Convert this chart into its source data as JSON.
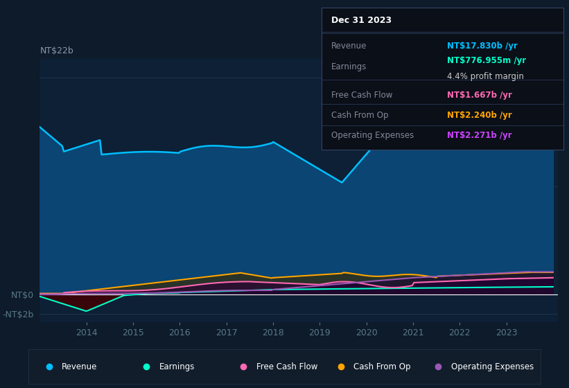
{
  "bg_color": "#0d1b2a",
  "plot_bg_color": "#0d2035",
  "grid_color": "#1e3a50",
  "revenue_color": "#00bfff",
  "earnings_color": "#00ffcc",
  "fcf_color": "#ff69b4",
  "cashop_color": "#ffa500",
  "opex_color": "#9b59b6",
  "revenue_fill": "#0a4a7a",
  "legend_labels": [
    "Revenue",
    "Earnings",
    "Free Cash Flow",
    "Cash From Op",
    "Operating Expenses"
  ],
  "legend_colors": [
    "#00bfff",
    "#00ffcc",
    "#ff69b4",
    "#ffa500",
    "#9b59b6"
  ],
  "tooltip_date": "Dec 31 2023",
  "tooltip_rows": [
    {
      "label": "Revenue",
      "value": "NT$17.830b /yr",
      "value_color": "#00bfff",
      "sub_label": null,
      "sub_value": null
    },
    {
      "label": "Earnings",
      "value": "NT$776.955m /yr",
      "value_color": "#00ffcc",
      "sub_label": null,
      "sub_value": "4.4% profit margin"
    },
    {
      "label": "Free Cash Flow",
      "value": "NT$1.667b /yr",
      "value_color": "#ff69b4",
      "sub_label": null,
      "sub_value": null
    },
    {
      "label": "Cash From Op",
      "value": "NT$2.240b /yr",
      "value_color": "#ffa500",
      "sub_label": null,
      "sub_value": null
    },
    {
      "label": "Operating Expenses",
      "value": "NT$2.271b /yr",
      "value_color": "#cc44ff",
      "sub_label": null,
      "sub_value": null
    }
  ],
  "xtick_years": [
    2014,
    2015,
    2016,
    2017,
    2018,
    2019,
    2020,
    2021,
    2022,
    2023
  ],
  "ylim": [
    -2.8,
    24
  ],
  "xlim": [
    2013.0,
    2024.1
  ]
}
